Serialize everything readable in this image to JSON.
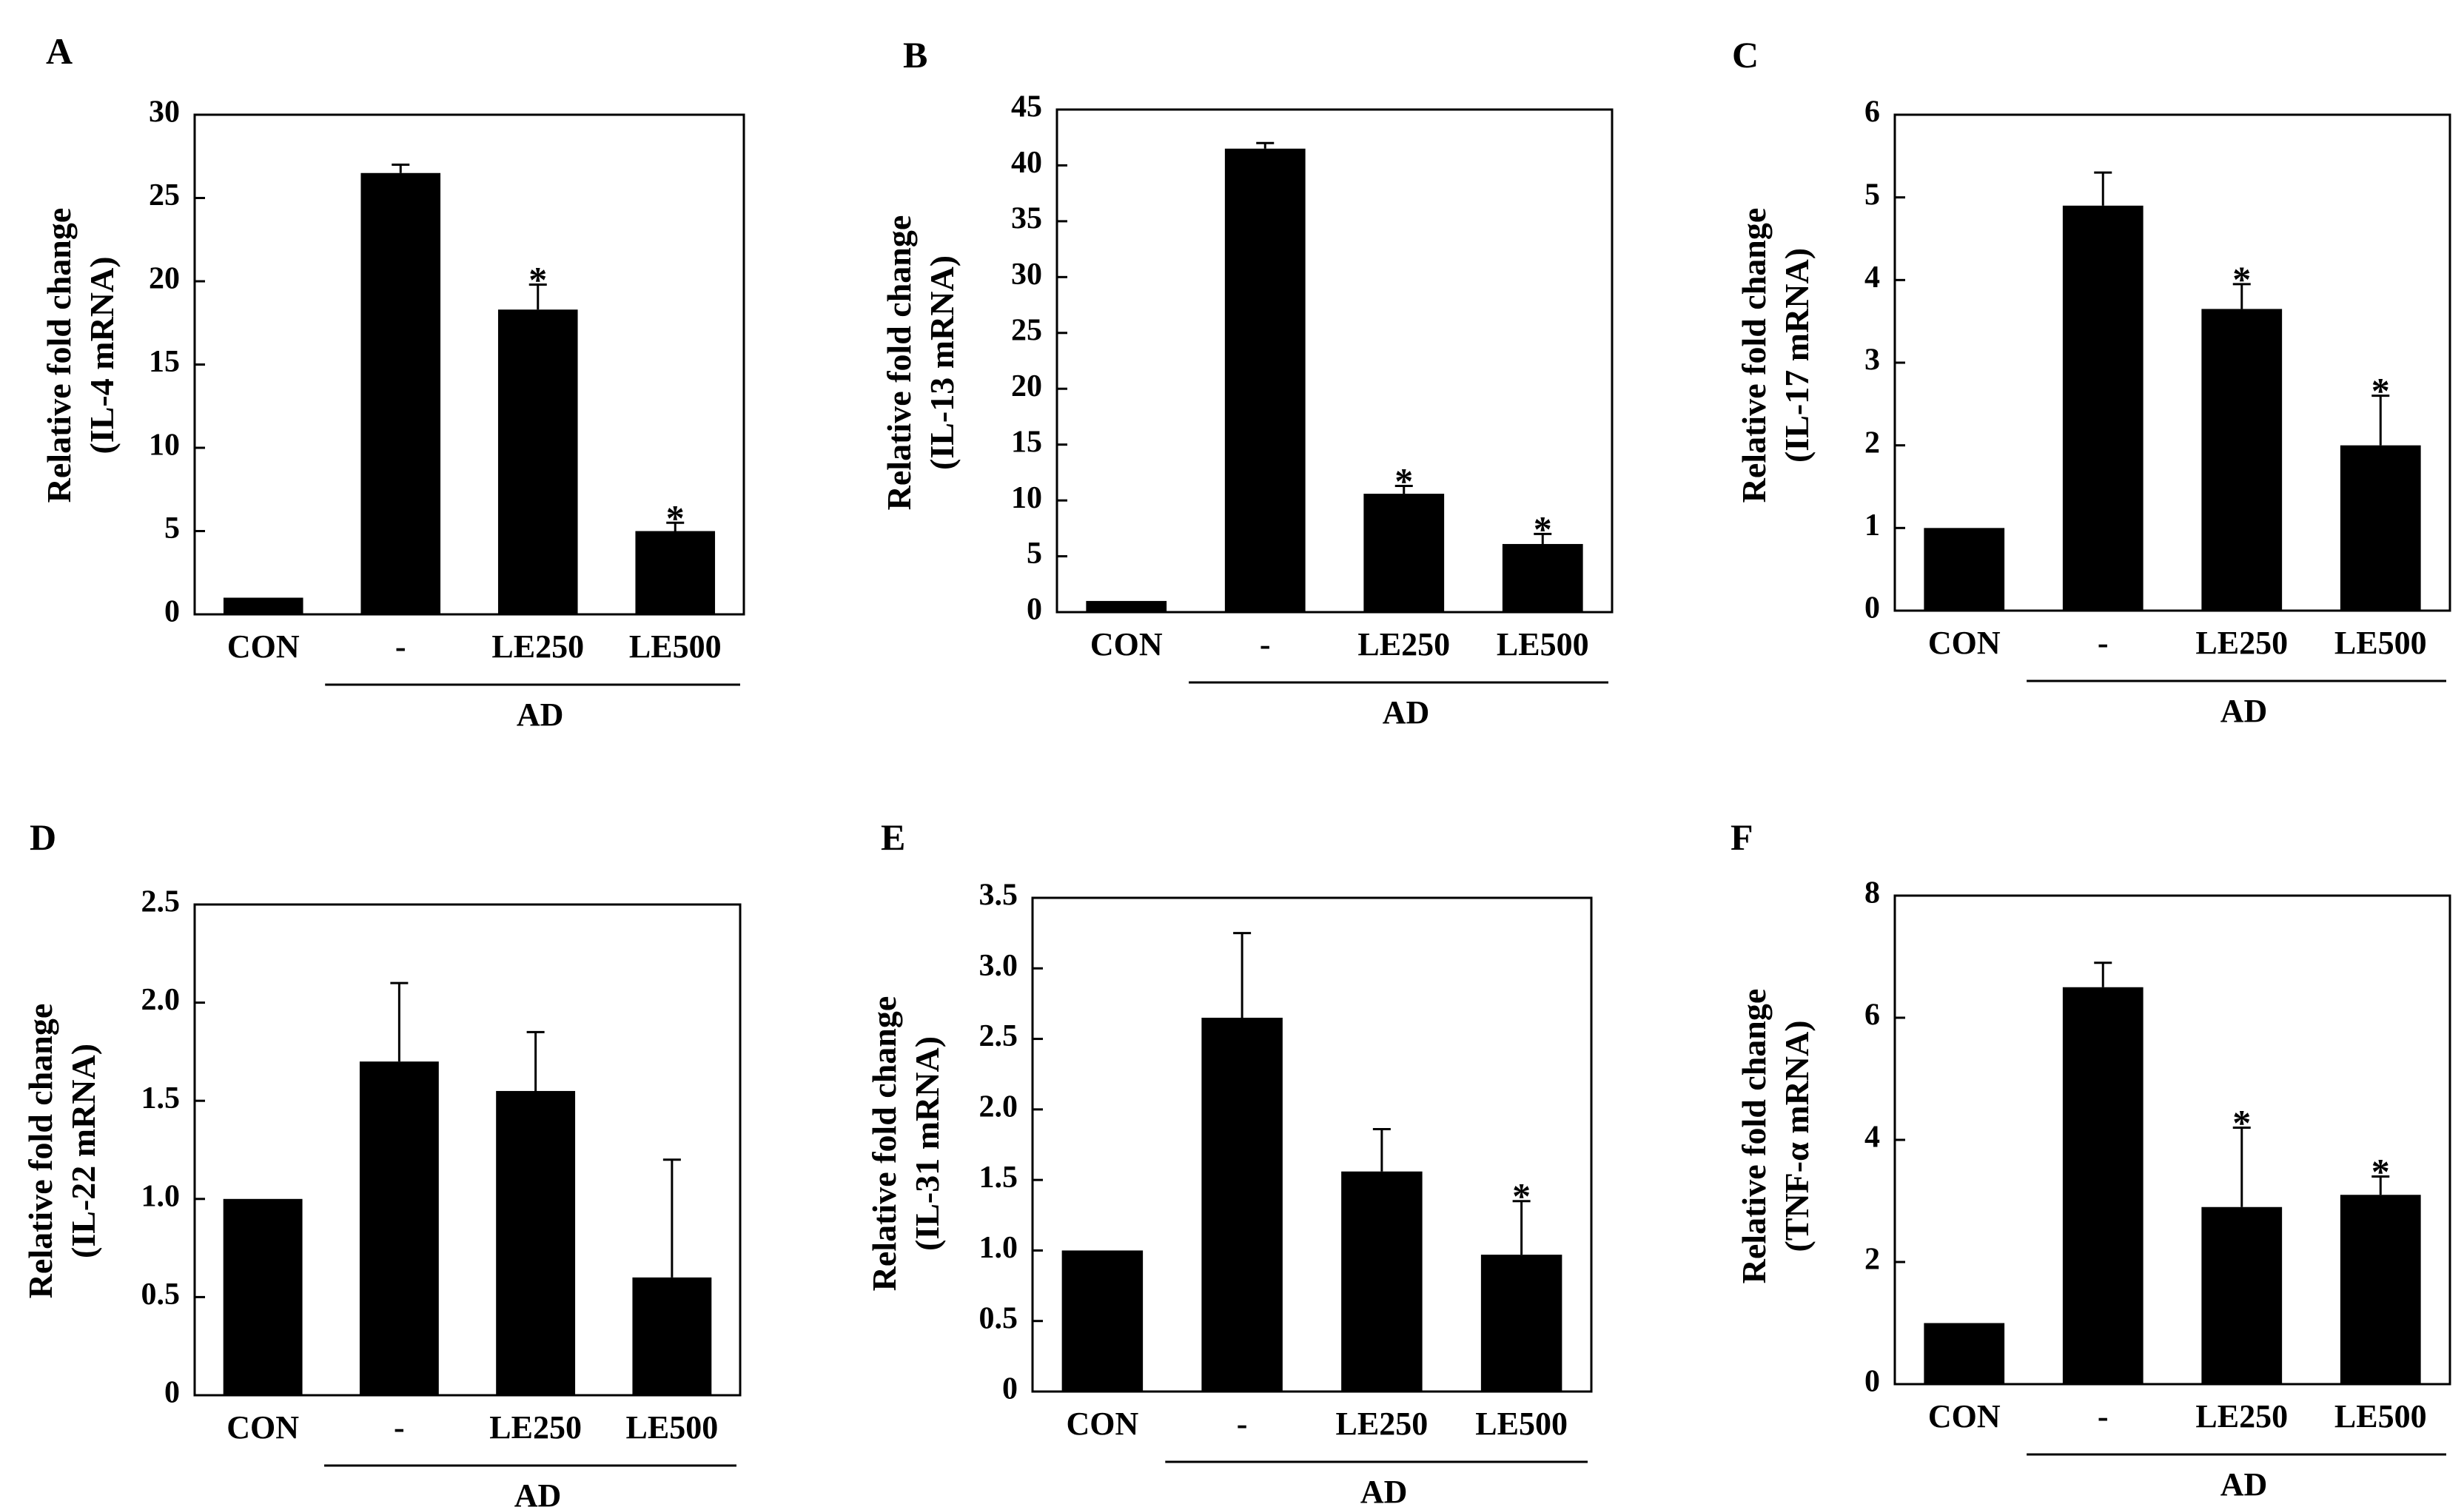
{
  "chart_data": [
    {
      "panel": "A",
      "type": "bar",
      "ylabel_line1": "Relative fold change",
      "ylabel_line2": "(IL-4 mRNA)",
      "categories": [
        "CON",
        "-",
        "LE250",
        "LE500"
      ],
      "values": [
        1.0,
        26.5,
        18.3,
        5.0
      ],
      "errors": [
        0,
        0.5,
        1.5,
        0.5
      ],
      "significant": [
        "",
        "",
        "*",
        "*"
      ],
      "group_label": "AD",
      "ylim": [
        0,
        30
      ],
      "yticks": [
        0,
        5,
        10,
        15,
        20,
        25,
        30
      ],
      "tick_labels": [
        "0",
        "5",
        "10",
        "15",
        "20",
        "25",
        "30"
      ]
    },
    {
      "panel": "B",
      "type": "bar",
      "ylabel_line1": "Relative fold change",
      "ylabel_line2": "(IL-13 mRNA)",
      "categories": [
        "CON",
        "-",
        "LE250",
        "LE500"
      ],
      "values": [
        1.0,
        41.5,
        10.6,
        6.1
      ],
      "errors": [
        0,
        0.5,
        0.7,
        0.9
      ],
      "significant": [
        "",
        "",
        "*",
        "*"
      ],
      "group_label": "AD",
      "ylim": [
        0,
        45
      ],
      "yticks": [
        0,
        5,
        10,
        15,
        20,
        25,
        30,
        35,
        40,
        45
      ],
      "tick_labels": [
        "0",
        "5",
        "10",
        "15",
        "20",
        "25",
        "30",
        "35",
        "40",
        "45"
      ]
    },
    {
      "panel": "C",
      "type": "bar",
      "ylabel_line1": "Relative fold change",
      "ylabel_line2": "(IL-17 mRNA)",
      "categories": [
        "CON",
        "-",
        "LE250",
        "LE500"
      ],
      "values": [
        1.0,
        4.9,
        3.65,
        2.0
      ],
      "errors": [
        0,
        0.4,
        0.3,
        0.6
      ],
      "significant": [
        "",
        "",
        "*",
        "*"
      ],
      "group_label": "AD",
      "ylim": [
        0,
        6
      ],
      "yticks": [
        0,
        1,
        2,
        3,
        4,
        5,
        6
      ],
      "tick_labels": [
        "0",
        "1",
        "2",
        "3",
        "4",
        "5",
        "6"
      ]
    },
    {
      "panel": "D",
      "type": "bar",
      "ylabel_line1": "Relative fold change",
      "ylabel_line2": "(IL-22 mRNA)",
      "categories": [
        "CON",
        "-",
        "LE250",
        "LE500"
      ],
      "values": [
        1.0,
        1.7,
        1.55,
        0.6
      ],
      "errors": [
        0,
        0.4,
        0.3,
        0.6
      ],
      "significant": [
        "",
        "",
        "",
        ""
      ],
      "group_label": "AD",
      "ylim": [
        0,
        2.5
      ],
      "yticks": [
        0,
        0.5,
        1.0,
        1.5,
        2.0,
        2.5
      ],
      "tick_labels": [
        "0",
        "0.5",
        "1.0",
        "1.5",
        "2.0",
        "2.5"
      ]
    },
    {
      "panel": "E",
      "type": "bar",
      "ylabel_line1": "Relative fold change",
      "ylabel_line2": "(IL-31 mRNA)",
      "categories": [
        "CON",
        "-",
        "LE250",
        "LE500"
      ],
      "values": [
        1.0,
        2.65,
        1.56,
        0.97
      ],
      "errors": [
        0,
        0.6,
        0.3,
        0.38
      ],
      "significant": [
        "",
        "",
        "",
        "*"
      ],
      "group_label": "AD",
      "ylim": [
        0,
        3.5
      ],
      "yticks": [
        0,
        0.5,
        1.0,
        1.5,
        2.0,
        2.5,
        3.0,
        3.5
      ],
      "tick_labels": [
        "0",
        "0.5",
        "1.0",
        "1.5",
        "2.0",
        "2.5",
        "3.0",
        "3.5"
      ]
    },
    {
      "panel": "F",
      "type": "bar",
      "ylabel_line1": "Relative fold change",
      "ylabel_line2": "(TNF-α mRNA)",
      "categories": [
        "CON",
        "-",
        "LE250",
        "LE500"
      ],
      "values": [
        1.0,
        6.5,
        2.9,
        3.1
      ],
      "errors": [
        0,
        0.4,
        1.3,
        0.3
      ],
      "significant": [
        "",
        "",
        "*",
        "*"
      ],
      "group_label": "AD",
      "ylim": [
        0,
        8
      ],
      "yticks": [
        0,
        2,
        4,
        6,
        8
      ],
      "tick_labels": [
        "0",
        "2",
        "4",
        "6",
        "8"
      ]
    }
  ]
}
